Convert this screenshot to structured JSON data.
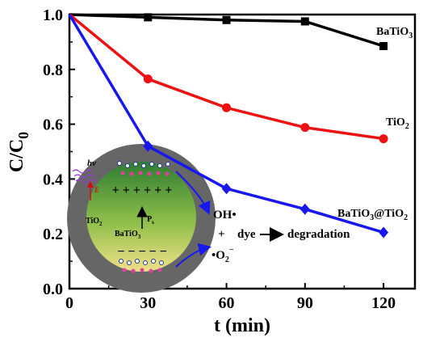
{
  "chart_data": {
    "type": "line",
    "x": [
      0,
      30,
      60,
      90,
      120
    ],
    "xlabel": "t (min)",
    "ylabel": "C/C",
    "ylabel_sub": "0",
    "xlim": [
      0,
      132
    ],
    "ylim": [
      0,
      1.0
    ],
    "xticks": [
      "0",
      "30",
      "60",
      "90",
      "120"
    ],
    "yticks": [
      "0.0",
      "0.2",
      "0.4",
      "0.6",
      "0.8",
      "1.0"
    ],
    "grid": false,
    "series": [
      {
        "name": "BaTiO3",
        "label_main": "BaTiO",
        "label_sub": "3",
        "color": "#000000",
        "marker": "square",
        "values": [
          1.0,
          0.99,
          0.98,
          0.975,
          0.885
        ]
      },
      {
        "name": "TiO2",
        "label_main": "TiO",
        "label_sub": "2",
        "color": "#ee1111",
        "marker": "circle",
        "values": [
          1.0,
          0.765,
          0.66,
          0.588,
          0.547
        ]
      },
      {
        "name": "BaTiO3@TiO2",
        "label_main": "BaTiO",
        "label_sub1": "3",
        "label_mid": "@TiO",
        "label_sub2": "2",
        "color": "#1818ee",
        "marker": "diamond",
        "values": [
          1.0,
          0.52,
          0.365,
          0.29,
          0.205
        ]
      }
    ]
  },
  "inset": {
    "hv": "hv",
    "e_field": "E",
    "ps": "P",
    "ps_sub": "s",
    "tio2": "TiO",
    "tio2_sub": "2",
    "batio3": "BaTiO",
    "batio3_sub": "3",
    "oh": "OH•",
    "plus": "+",
    "dye": "dye",
    "degradation": "degradation",
    "superoxide_main": "•O",
    "superoxide_sub": "2",
    "superoxide_sup": "−",
    "plus_charges": "+ + + + + +",
    "minus_charges": "− − − − −",
    "colors": {
      "shell": "#666666",
      "core_top": "#2e7d32",
      "core_bottom": "#f0e08a",
      "arrow": "#1818ee",
      "electron": "#1e3a8a",
      "hole": "#e040a0"
    }
  }
}
